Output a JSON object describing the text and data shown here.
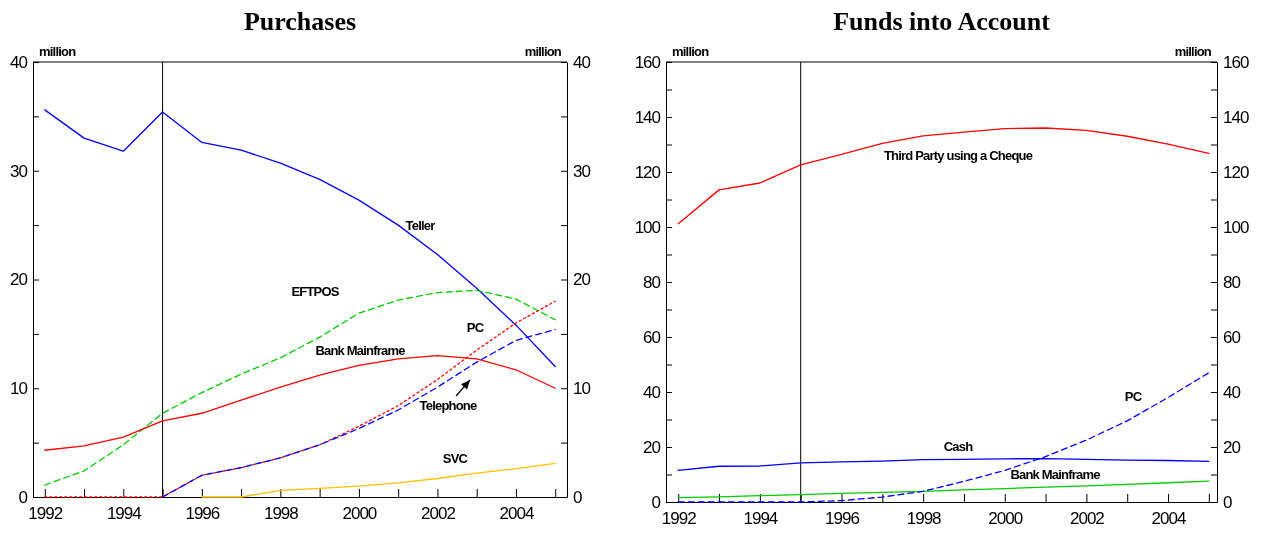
{
  "chart_data": [
    {
      "type": "line",
      "title": "Purchases",
      "ylabel": "million",
      "y2label": "million",
      "x": [
        1992,
        1993,
        1994,
        1995,
        1996,
        1997,
        1998,
        1999,
        2000,
        2001,
        2002,
        2003,
        2004,
        2005
      ],
      "xlim": [
        1991.7,
        2005.3
      ],
      "xticks": [
        1992,
        {
          "value": 1993,
          "label": null
        },
        1994,
        {
          "value": 1995,
          "label": null
        },
        1996,
        {
          "value": 1997,
          "label": null
        },
        1998,
        {
          "value": 1999,
          "label": null
        },
        2000,
        {
          "value": 2001,
          "label": null
        },
        2002,
        {
          "value": 2003,
          "label": null
        },
        2004,
        {
          "value": 2005,
          "label": null
        }
      ],
      "ylim": [
        0,
        40
      ],
      "yticks": [
        0,
        {
          "value": 5,
          "label": null
        },
        10,
        {
          "value": 15,
          "label": null
        },
        20,
        {
          "value": 25,
          "label": null
        },
        30,
        {
          "value": 35,
          "label": null
        },
        40
      ],
      "y2lim": [
        0,
        40
      ],
      "y2ticks": [
        0,
        {
          "value": 5,
          "label": null
        },
        10,
        {
          "value": 15,
          "label": null
        },
        20,
        {
          "value": 25,
          "label": null
        },
        30,
        {
          "value": 35,
          "label": null
        },
        40
      ],
      "grid": false,
      "ref_lines": [
        {
          "axis": "x",
          "value": 1995,
          "color": "#000000"
        }
      ],
      "series": [
        {
          "name": "Teller",
          "color": "#0000ff",
          "line_style": "solid",
          "values": [
            35.6,
            33.0,
            31.8,
            35.4,
            32.6,
            31.9,
            30.7,
            29.2,
            27.3,
            25.0,
            22.3,
            19.2,
            15.8,
            12.0
          ]
        },
        {
          "name": "EFTPOS",
          "color": "#00cc00",
          "line_style": "dashed",
          "values": [
            1.1,
            2.4,
            4.8,
            7.7,
            9.6,
            11.3,
            12.8,
            14.7,
            16.9,
            18.1,
            18.8,
            19.0,
            18.2,
            16.3
          ]
        },
        {
          "name": "Bank Mainframe",
          "color": "#ff0000",
          "line_style": "solid",
          "values": [
            4.3,
            4.7,
            5.5,
            7.0,
            7.7,
            8.9,
            10.1,
            11.2,
            12.1,
            12.7,
            13.0,
            12.7,
            11.7,
            10.0
          ]
        },
        {
          "name": "PC",
          "color": "#ff0000",
          "line_style": "dotted",
          "values": [
            0,
            0,
            0,
            0,
            2.0,
            2.7,
            3.6,
            4.8,
            6.5,
            8.4,
            10.8,
            13.5,
            16.0,
            18.0
          ]
        },
        {
          "name": "Telephone",
          "color": "#0000ff",
          "line_style": "dashed",
          "values": [
            null,
            null,
            null,
            0,
            2.0,
            2.7,
            3.6,
            4.8,
            6.3,
            8.0,
            10.1,
            12.4,
            14.4,
            15.4
          ]
        },
        {
          "name": "SVC",
          "color": "#ffc000",
          "line_style": "solid",
          "values": [
            null,
            null,
            null,
            null,
            0,
            0,
            0.6,
            0.8,
            1.0,
            1.3,
            1.7,
            2.2,
            2.6,
            3.1
          ]
        }
      ]
    },
    {
      "type": "line",
      "title": "Funds into Account",
      "ylabel": "million",
      "y2label": "million",
      "x": [
        1992,
        1993,
        1994,
        1995,
        1996,
        1997,
        1998,
        1999,
        2000,
        2001,
        2002,
        2003,
        2004,
        2005
      ],
      "xlim": [
        1991.7,
        2005.2
      ],
      "xticks": [
        1992,
        {
          "value": 1993,
          "label": null
        },
        1994,
        {
          "value": 1995,
          "label": null
        },
        1996,
        {
          "value": 1997,
          "label": null
        },
        1998,
        {
          "value": 1999,
          "label": null
        },
        2000,
        {
          "value": 2001,
          "label": null
        },
        2002,
        {
          "value": 2003,
          "label": null
        },
        2004,
        {
          "value": 2005,
          "label": null
        }
      ],
      "ylim": [
        0,
        160
      ],
      "yticks": [
        0,
        {
          "value": 10,
          "label": null
        },
        20,
        {
          "value": 30,
          "label": null
        },
        40,
        {
          "value": 50,
          "label": null
        },
        60,
        {
          "value": 70,
          "label": null
        },
        80,
        {
          "value": 90,
          "label": null
        },
        100,
        {
          "value": 110,
          "label": null
        },
        120,
        {
          "value": 130,
          "label": null
        },
        140,
        {
          "value": 150,
          "label": null
        },
        160
      ],
      "y2lim": [
        0,
        160
      ],
      "y2ticks": [
        0,
        {
          "value": 10,
          "label": null
        },
        20,
        {
          "value": 30,
          "label": null
        },
        40,
        {
          "value": 50,
          "label": null
        },
        60,
        {
          "value": 70,
          "label": null
        },
        80,
        {
          "value": 90,
          "label": null
        },
        100,
        {
          "value": 110,
          "label": null
        },
        120,
        {
          "value": 130,
          "label": null
        },
        140,
        {
          "value": 150,
          "label": null
        },
        160
      ],
      "grid": false,
      "ref_lines": [
        {
          "axis": "x",
          "value": 1995,
          "color": "#000000"
        }
      ],
      "series": [
        {
          "name": "Third Party using a Cheque",
          "color": "#ff0000",
          "line_style": "solid",
          "values": [
            101.2,
            113.5,
            116.0,
            122.6,
            126.4,
            130.4,
            133.1,
            134.5,
            135.8,
            136.0,
            135.1,
            133.0,
            130.1,
            126.8
          ]
        },
        {
          "name": "Cash",
          "color": "#0000ff",
          "line_style": "solid",
          "values": [
            11.5,
            13.0,
            13.1,
            14.2,
            14.6,
            14.9,
            15.4,
            15.5,
            15.7,
            15.8,
            15.5,
            15.2,
            15.1,
            14.8
          ]
        },
        {
          "name": "Bank Mainframe",
          "color": "#00cc00",
          "line_style": "solid",
          "values": [
            1.6,
            1.9,
            2.3,
            2.7,
            3.1,
            3.5,
            3.9,
            4.4,
            4.9,
            5.4,
            5.9,
            6.4,
            7.0,
            7.6
          ]
        },
        {
          "name": "PC",
          "color": "#0000ff",
          "line_style": "dashed",
          "values": [
            0,
            0,
            0,
            0,
            0.5,
            1.8,
            3.9,
            7.5,
            11.5,
            16.5,
            22.5,
            29.5,
            38,
            47
          ]
        }
      ]
    }
  ]
}
